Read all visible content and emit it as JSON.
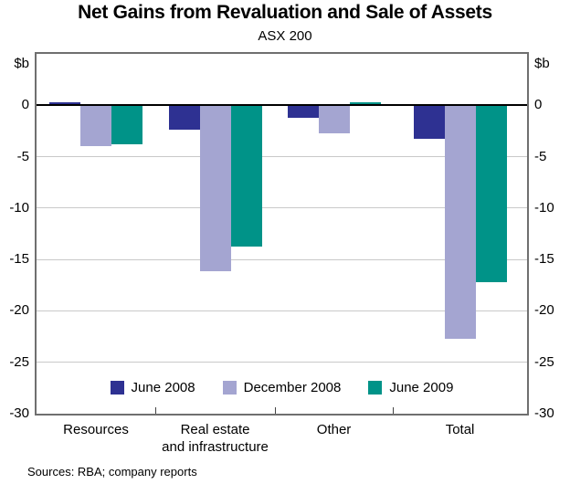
{
  "title": "Net Gains from Revaluation and Sale of Assets",
  "subtitle": "ASX 200",
  "source": "Sources: RBA; company reports",
  "chart_data": {
    "type": "bar",
    "title": "Net Gains from Revaluation and Sale of Assets",
    "subtitle": "ASX 200",
    "unit": "$b",
    "categories": [
      "Resources",
      "Real estate\nand infrastructure",
      "Other",
      "Total"
    ],
    "series": [
      {
        "name": "June 2008",
        "color": "#2e3192",
        "values": [
          0.3,
          -2.4,
          -1.2,
          -3.3
        ]
      },
      {
        "name": "December 2008",
        "color": "#a4a5d1",
        "values": [
          -4.0,
          -16.1,
          -2.7,
          -22.7
        ]
      },
      {
        "name": "June 2009",
        "color": "#009388",
        "values": [
          -3.8,
          -13.7,
          0.3,
          -17.2
        ]
      }
    ],
    "ylim": [
      -30,
      5
    ],
    "yticks": [
      0,
      -5,
      -10,
      -15,
      -20,
      -25,
      -30
    ],
    "grid": true,
    "dual_axis_labels": true,
    "legend_position": "bottom-inside",
    "source": "Sources: RBA; company reports",
    "colors": {
      "zero_line": "#000000",
      "gridline": "#c9c9c9",
      "frame": "#6f6f6f"
    }
  }
}
